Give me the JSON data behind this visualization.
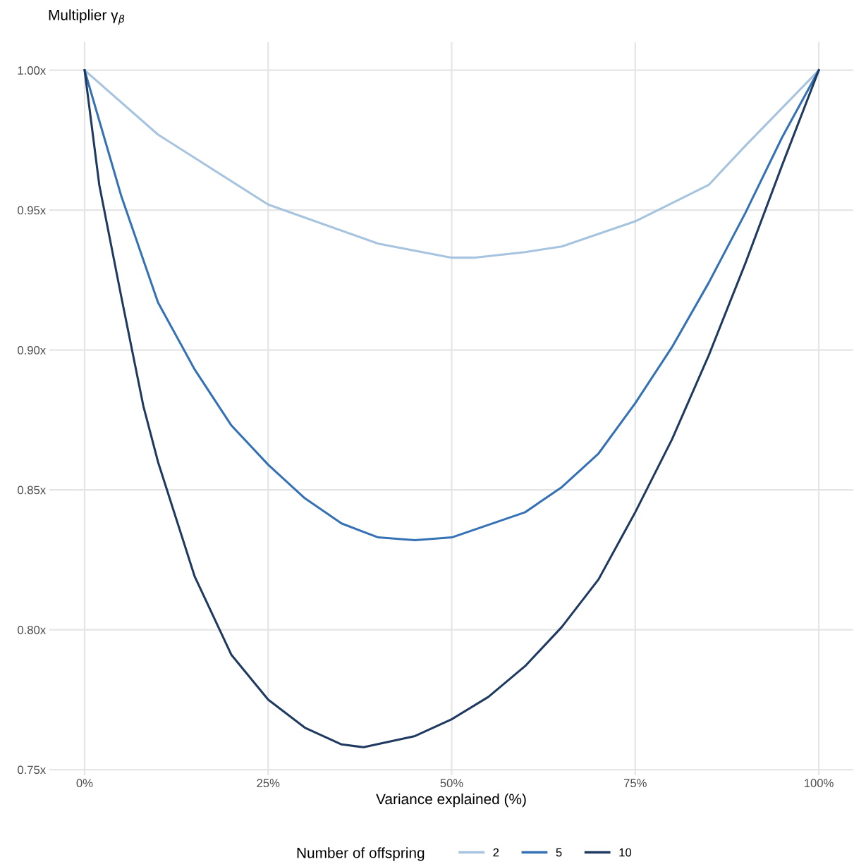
{
  "chart_data": {
    "type": "line",
    "ylabel": "Multiplier γ$_{β}$",
    "xlabel": "Variance explained (%)",
    "legend_title": "Number of offspring",
    "xlim": [
      -4.8,
      104.7
    ],
    "ylim": [
      0.748,
      1.01
    ],
    "xticks": [
      {
        "value": 0,
        "label": "0%"
      },
      {
        "value": 25,
        "label": "25%"
      },
      {
        "value": 50,
        "label": "50%"
      },
      {
        "value": 75,
        "label": "75%"
      },
      {
        "value": 100,
        "label": "100%"
      }
    ],
    "yticks": [
      {
        "value": 0.75,
        "label": "0.75x"
      },
      {
        "value": 0.8,
        "label": "0.80x"
      },
      {
        "value": 0.85,
        "label": "0.85x"
      },
      {
        "value": 0.9,
        "label": "0.90x"
      },
      {
        "value": 0.95,
        "label": "0.95x"
      },
      {
        "value": 1.0,
        "label": "1.00x"
      }
    ],
    "grid": true,
    "legend": "bottom",
    "marker": "none",
    "line_style": "solid",
    "series": [
      {
        "name": "2",
        "color": "#a6c4df",
        "x": [
          0,
          10,
          25,
          40,
          50,
          53,
          60,
          65,
          75,
          85,
          90,
          100
        ],
        "values": [
          1.0,
          0.977,
          0.952,
          0.938,
          0.933,
          0.933,
          0.935,
          0.937,
          0.946,
          0.959,
          0.973,
          1.0
        ]
      },
      {
        "name": "5",
        "color": "#3471b5",
        "x": [
          0,
          5,
          10,
          15,
          20,
          25,
          30,
          35,
          40,
          45,
          50,
          60,
          65,
          70,
          75,
          80,
          85,
          90,
          95,
          100
        ],
        "values": [
          1.0,
          0.955,
          0.917,
          0.893,
          0.873,
          0.859,
          0.847,
          0.838,
          0.833,
          0.832,
          0.833,
          0.842,
          0.851,
          0.863,
          0.881,
          0.901,
          0.924,
          0.949,
          0.976,
          1.0
        ]
      },
      {
        "name": "10",
        "color": "#1f3a60",
        "x": [
          0,
          2,
          5,
          8,
          10,
          15,
          20,
          25,
          30,
          35,
          38,
          45,
          50,
          55,
          60,
          65,
          70,
          75,
          80,
          85,
          90,
          95,
          100
        ],
        "values": [
          1.0,
          0.959,
          0.919,
          0.88,
          0.86,
          0.819,
          0.791,
          0.775,
          0.765,
          0.759,
          0.758,
          0.762,
          0.768,
          0.776,
          0.787,
          0.801,
          0.818,
          0.842,
          0.868,
          0.898,
          0.931,
          0.966,
          1.0
        ]
      }
    ]
  }
}
